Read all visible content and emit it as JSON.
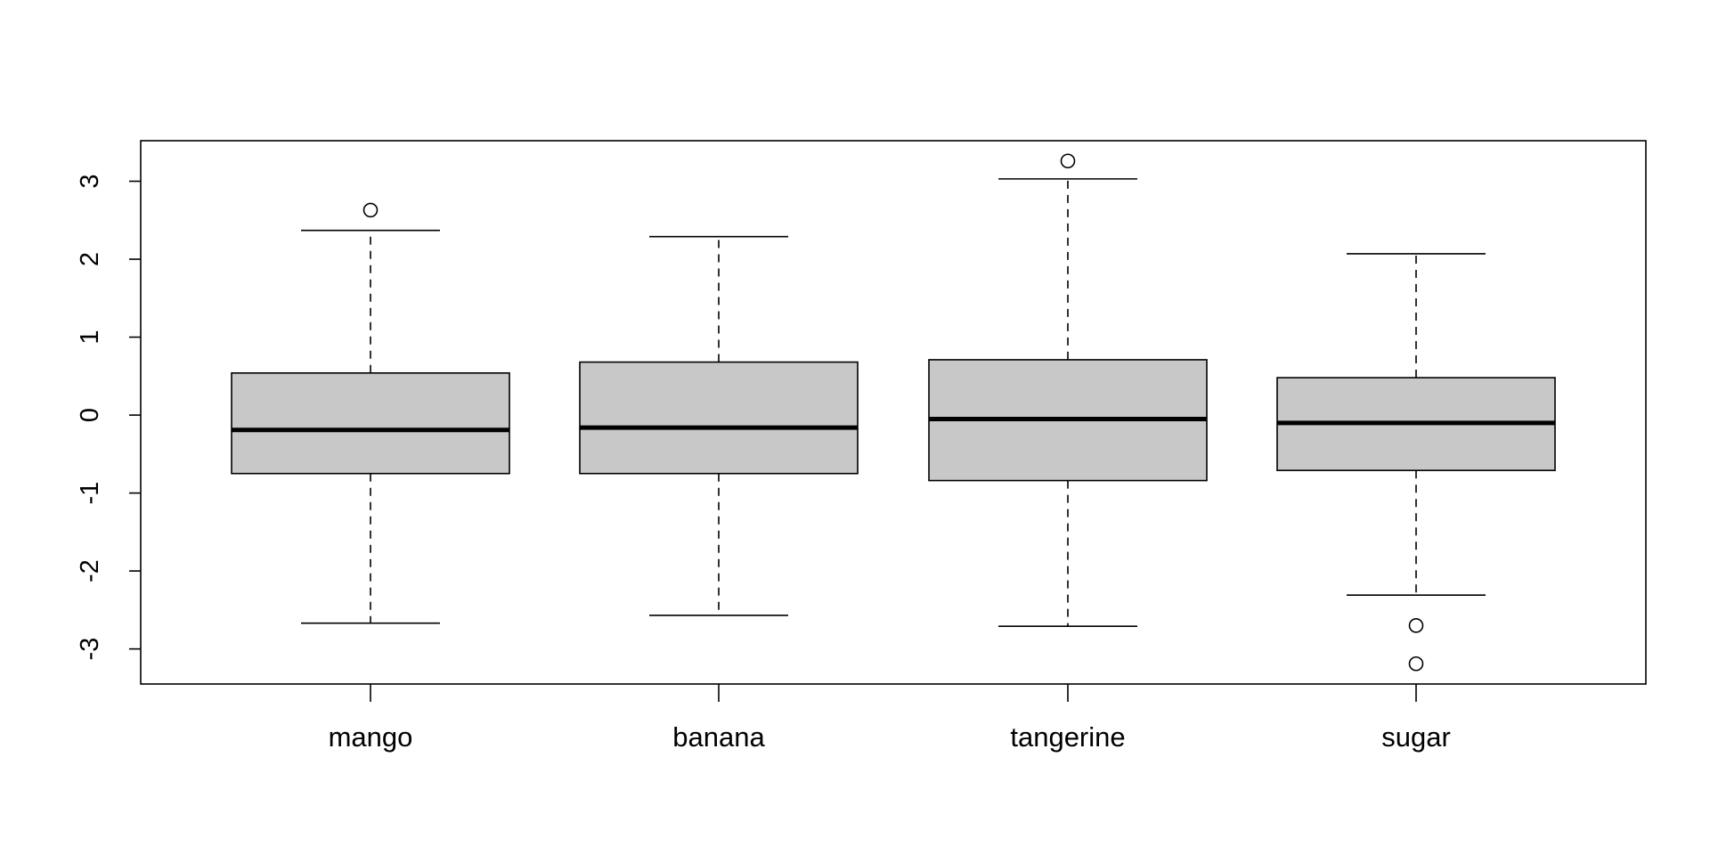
{
  "chart_data": {
    "type": "box",
    "title": "",
    "xlabel": "",
    "ylabel": "",
    "ylim": [
      -3.45,
      3.52
    ],
    "yticks": [
      -3,
      -2,
      -1,
      0,
      1,
      2,
      3
    ],
    "ytick_labels": [
      "-3",
      "-2",
      "-1",
      "0",
      "1",
      "2",
      "3"
    ],
    "categories": [
      "mango",
      "banana",
      "tangerine",
      "sugar"
    ],
    "boxes": [
      {
        "category": "mango",
        "whisker_low": -2.67,
        "q1": -0.75,
        "median": -0.19,
        "q3": 0.54,
        "whisker_high": 2.37,
        "outliers": [
          2.63
        ]
      },
      {
        "category": "banana",
        "whisker_low": -2.57,
        "q1": -0.75,
        "median": -0.16,
        "q3": 0.68,
        "whisker_high": 2.29,
        "outliers": []
      },
      {
        "category": "tangerine",
        "whisker_low": -2.71,
        "q1": -0.84,
        "median": -0.05,
        "q3": 0.71,
        "whisker_high": 3.03,
        "outliers": [
          3.26
        ]
      },
      {
        "category": "sugar",
        "whisker_low": -2.31,
        "q1": -0.71,
        "median": -0.1,
        "q3": 0.48,
        "whisker_high": 2.07,
        "outliers": [
          -2.7,
          -3.19
        ]
      }
    ],
    "box_fill": "#c8c8c8",
    "grid": false,
    "legend": "none"
  }
}
